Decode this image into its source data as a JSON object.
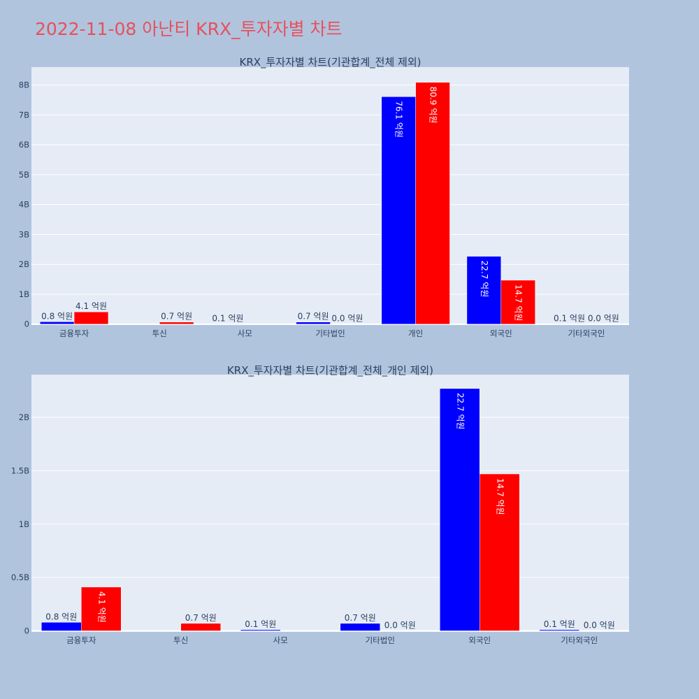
{
  "page": {
    "title": "2022-11-08 아난티 KRX_투자자별 차트"
  },
  "colors": {
    "background": "#b0c4de",
    "plot_background": "#e5ecf6",
    "gridline": "#ffffff",
    "title": "#e8505b",
    "text": "#2a3f5f",
    "series_blue": "#0000ff",
    "series_red": "#ff0000"
  },
  "chart_data": [
    {
      "type": "bar",
      "title": "KRX_투자자별 차트(기관합계_전체 제외)",
      "categories": [
        "금융투자",
        "투신",
        "사모",
        "기타법인",
        "개인",
        "외국인",
        "기타외국인"
      ],
      "series": [
        {
          "color": "#0000ff",
          "values": [
            80000000.0,
            null,
            10000000.0,
            70000000.0,
            7610000000.0,
            2270000000.0,
            10000000.0
          ],
          "labels": [
            "0.8 억원",
            "",
            "0.1 억원",
            "0.7 억원",
            "76.1 억원",
            "22.7 억원",
            "0.1 억원"
          ]
        },
        {
          "color": "#ff0000",
          "values": [
            410000000.0,
            70000000.0,
            null,
            0.0,
            8090000000.0,
            1470000000.0,
            0.0
          ],
          "labels": [
            "4.1 억원",
            "0.7 억원",
            "",
            "0.0 억원",
            "80.9 억원",
            "14.7 억원",
            "0.0 억원"
          ]
        }
      ],
      "yticks": [
        0,
        1000000000.0,
        2000000000.0,
        3000000000.0,
        4000000000.0,
        5000000000.0,
        6000000000.0,
        7000000000.0,
        8000000000.0
      ],
      "ytick_labels": [
        "0",
        "1B",
        "2B",
        "3B",
        "4B",
        "5B",
        "6B",
        "7B",
        "8B"
      ],
      "ylim": [
        -30000000.0,
        8600000000.0
      ],
      "grid": true
    },
    {
      "type": "bar",
      "title": "KRX_투자자별 차트(기관합계_전체_개인 제외)",
      "categories": [
        "금융투자",
        "투신",
        "사모",
        "기타법인",
        "외국인",
        "기타외국인"
      ],
      "series": [
        {
          "color": "#0000ff",
          "values": [
            80000000.0,
            null,
            10000000.0,
            70000000.0,
            2270000000.0,
            10000000.0
          ],
          "labels": [
            "0.8 억원",
            "",
            "0.1 억원",
            "0.7 억원",
            "22.7 억원",
            "0.1 억원"
          ]
        },
        {
          "color": "#ff0000",
          "values": [
            410000000.0,
            70000000.0,
            null,
            0.0,
            1470000000.0,
            0.0
          ],
          "labels": [
            "4.1 억원",
            "0.7 억원",
            "",
            "0.0 억원",
            "14.7 억원",
            "0.0 억원"
          ]
        }
      ],
      "yticks": [
        0,
        500000000.0,
        1000000000.0,
        1500000000.0,
        2000000000.0
      ],
      "ytick_labels": [
        "0",
        "0.5B",
        "1B",
        "1.5B",
        "2B"
      ],
      "ylim": [
        -10000000.0,
        2400000000.0
      ],
      "grid": true
    }
  ]
}
